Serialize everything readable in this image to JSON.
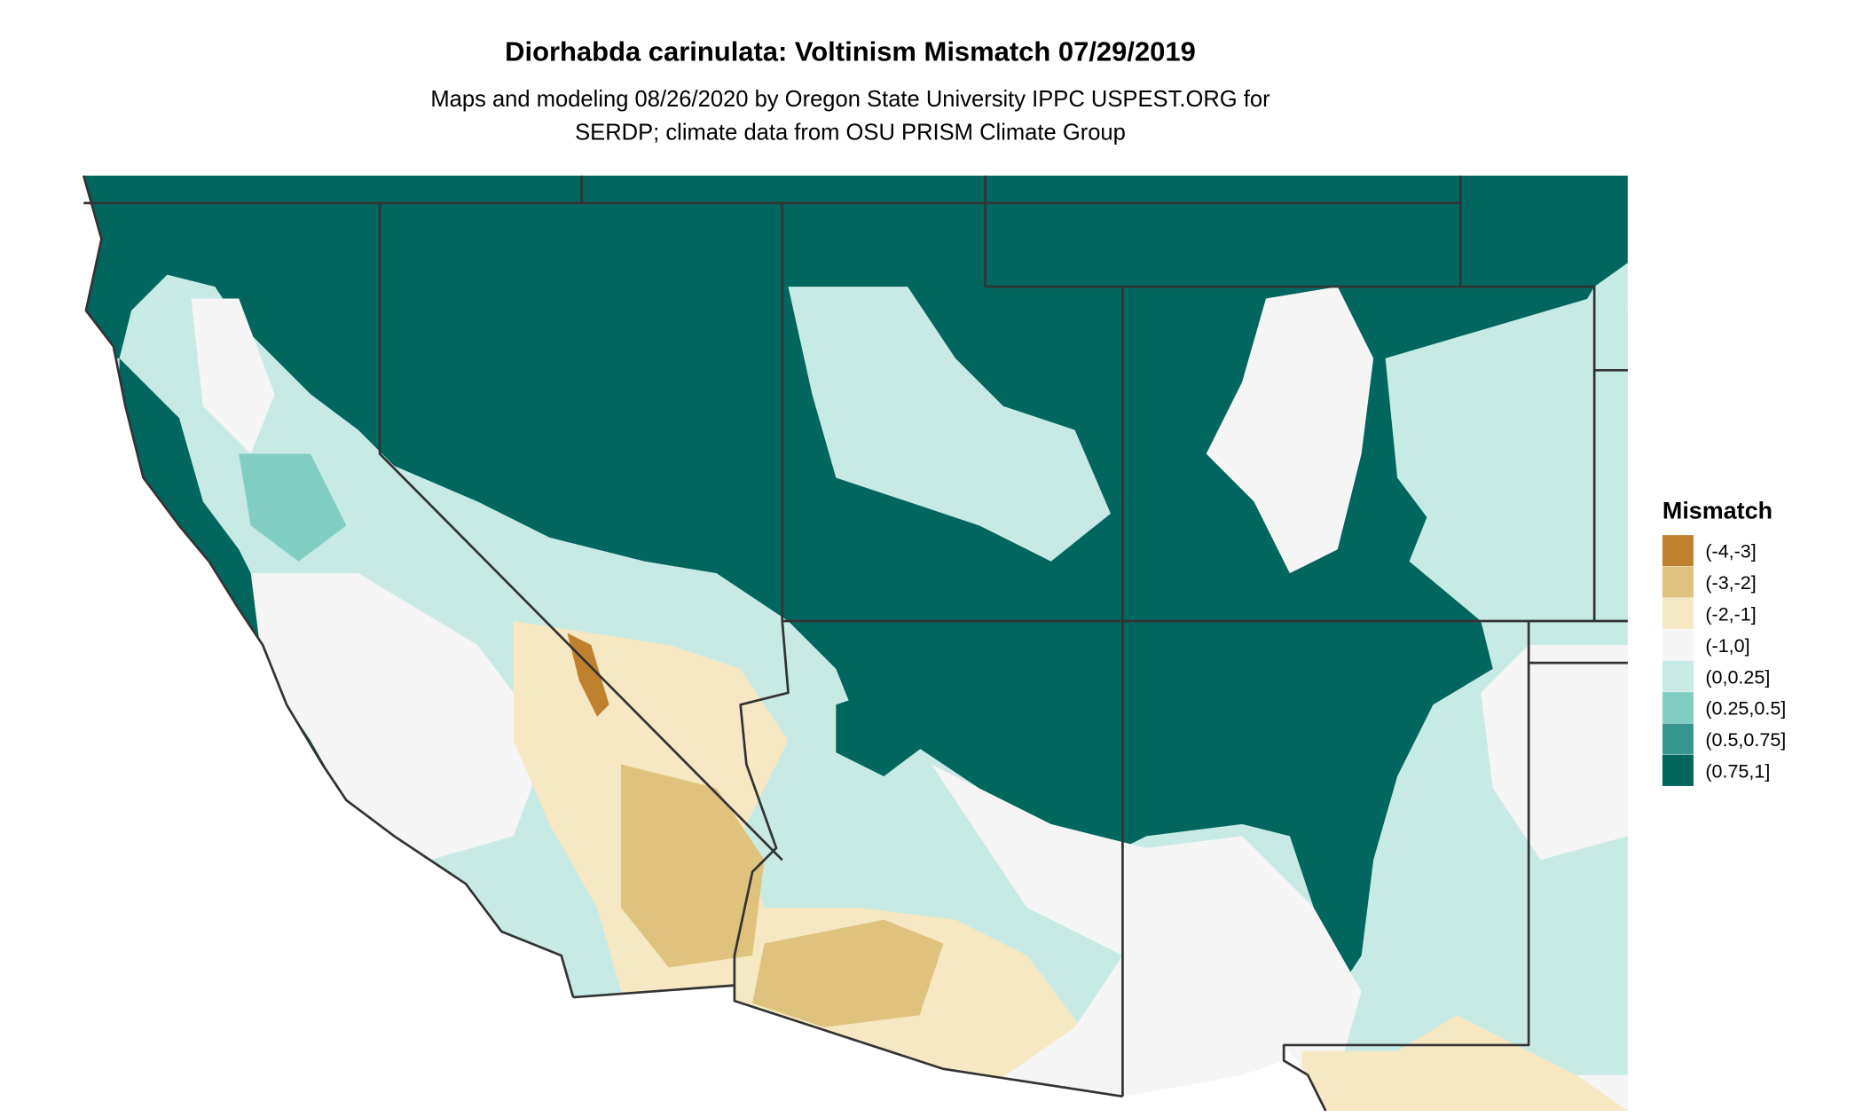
{
  "title": "Diorhabda carinulata: Voltinism Mismatch 07/29/2019",
  "subtitle": [
    "Maps and modeling 08/26/2020 by Oregon State University IPPC USPEST.ORG for",
    "SERDP; climate data from OSU PRISM Climate Group"
  ],
  "legend": {
    "title": "Mismatch",
    "items": [
      {
        "label": "(-4,-3]",
        "color": "#bf812d"
      },
      {
        "label": "(-3,-2]",
        "color": "#dfc27d"
      },
      {
        "label": "(-2,-1]",
        "color": "#f6e8c3"
      },
      {
        "label": "(-1,0]",
        "color": "#f5f5f5"
      },
      {
        "label": "(0,0.25]",
        "color": "#c7eae5"
      },
      {
        "label": "(0.25,0.5]",
        "color": "#80cdc1"
      },
      {
        "label": "(0.5,0.75]",
        "color": "#35978f"
      },
      {
        "label": "(0.75,1]",
        "color": "#01665e"
      }
    ]
  }
}
